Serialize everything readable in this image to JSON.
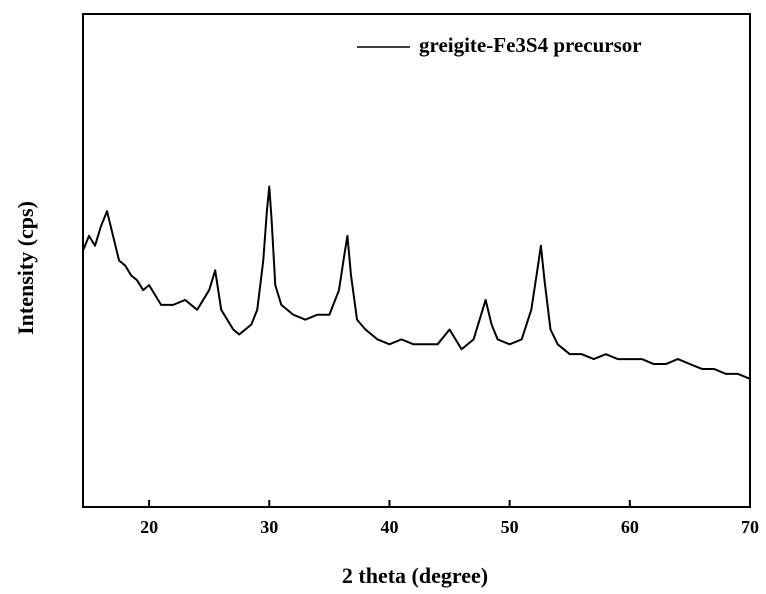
{
  "chart_data": {
    "type": "line",
    "x_label": "2 theta (degree)",
    "y_label": "Intensity (cps)",
    "xlim": [
      14.5,
      70
    ],
    "ylim": [
      0,
      100
    ],
    "xticks": [
      20,
      30,
      40,
      50,
      60,
      70
    ],
    "x": [
      14.5,
      15,
      15.5,
      16,
      16.5,
      17,
      17.5,
      18,
      18.5,
      19,
      19.5,
      20,
      21,
      22,
      23,
      24,
      25,
      25.5,
      26,
      26.5,
      27,
      27.5,
      28,
      28.5,
      29,
      29.5,
      29.8,
      30,
      30.2,
      30.5,
      31,
      32,
      33,
      34,
      35,
      35.8,
      36.3,
      36.5,
      36.8,
      37.3,
      38,
      39,
      40,
      41,
      42,
      43,
      44,
      45,
      45.5,
      46,
      47,
      47.5,
      48,
      48.5,
      49,
      50,
      51,
      51.8,
      52.3,
      52.6,
      52.9,
      53.4,
      54,
      55,
      56,
      57,
      58,
      59,
      60,
      61,
      62,
      63,
      64,
      65,
      66,
      67,
      68,
      69,
      70
    ],
    "series": [
      {
        "name": "greigite-Fe3S4 precursor",
        "color": "#000000",
        "values": [
          52,
          55,
          53,
          57,
          60,
          55,
          50,
          49,
          47,
          46,
          44,
          45,
          41,
          41,
          42,
          40,
          44,
          48,
          40,
          38,
          36,
          35,
          36,
          37,
          40,
          50,
          60,
          65,
          58,
          45,
          41,
          39,
          38,
          39,
          39,
          44,
          52,
          55,
          47,
          38,
          36,
          34,
          33,
          34,
          33,
          33,
          33,
          36,
          34,
          32,
          34,
          38,
          42,
          37,
          34,
          33,
          34,
          40,
          48,
          53,
          46,
          36,
          33,
          31,
          31,
          30,
          31,
          30,
          30,
          30,
          29,
          29,
          30,
          29,
          28,
          28,
          27,
          27,
          26
        ]
      }
    ],
    "legend": "upper right"
  }
}
